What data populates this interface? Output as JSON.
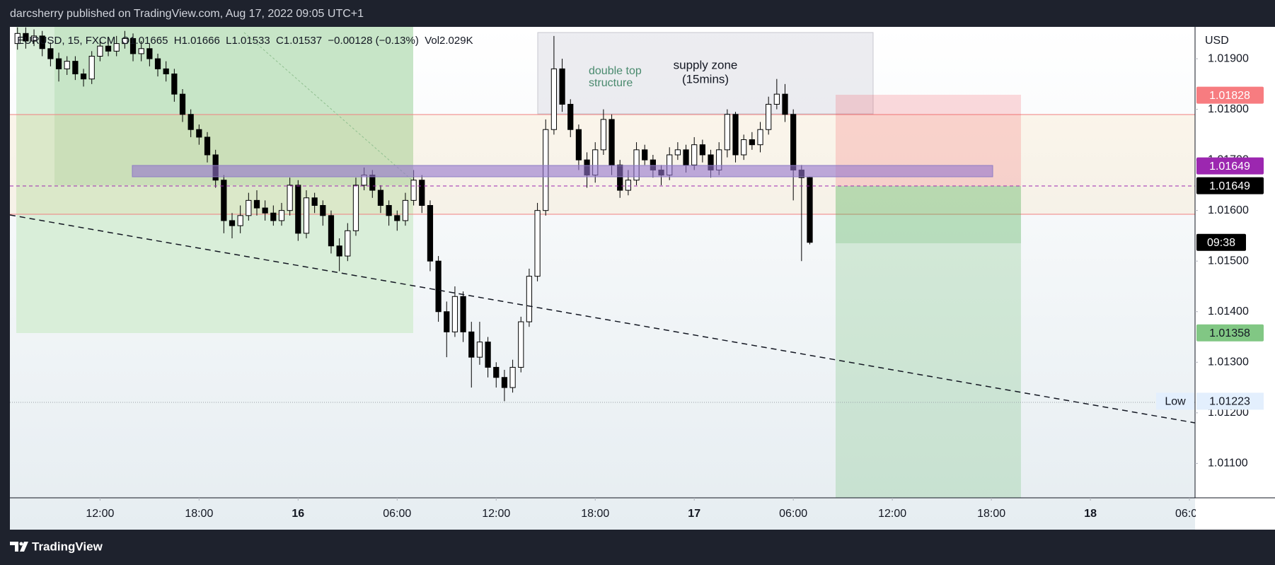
{
  "chart_data": {
    "type": "candlestick",
    "published": "darcsherry published on TradingView.com, Aug 17, 2022 09:05 UTC+1",
    "symbol_info": "EURUSD, 15, FXCM  O1.01665  H1.01666  L1.01533  C1.01537  −0.00128 (−0.13%)  Vol2.029K",
    "currency": "USD",
    "brand": "TradingView",
    "annotations": [
      {
        "lines": [
          "double top",
          "structure"
        ],
        "color": "#4a8a6e"
      },
      {
        "lines": [
          "supply zone",
          "(15mins)"
        ],
        "color": "#131722"
      }
    ],
    "countdown": "09:38",
    "markers": [
      {
        "value": 1.01828,
        "color": "#f77c80",
        "text_color": "#ffffff"
      },
      {
        "value": 1.01649,
        "color": "#9c27b0",
        "text_color": "#ffffff"
      },
      {
        "value": 1.01649,
        "color": "#000000",
        "text_color": "#ffffff"
      },
      {
        "value": 1.01358,
        "color": "#81c784",
        "text_color": "#131722"
      }
    ],
    "low_marker": {
      "name": "Low",
      "value": 1.01223
    },
    "up_color": "#ffffff",
    "down_color": "#000000",
    "xlim": [
      6.54,
      78.34
    ],
    "xticks": [
      {
        "value": 12,
        "label": "12:00"
      },
      {
        "value": 18,
        "label": "18:00"
      },
      {
        "value": 24,
        "label": "16"
      },
      {
        "value": 30,
        "label": "06:00"
      },
      {
        "value": 36,
        "label": "12:00"
      },
      {
        "value": 42,
        "label": "18:00"
      },
      {
        "value": 48,
        "label": "17"
      },
      {
        "value": 54,
        "label": "06:00"
      },
      {
        "value": 60,
        "label": "12:00"
      },
      {
        "value": 66,
        "label": "18:00"
      },
      {
        "value": 72,
        "label": "18"
      },
      {
        "value": 78,
        "label": "06:00"
      }
    ],
    "ylim": [
      1.01032,
      1.01963
    ],
    "yticks": [
      {
        "value": 1.011,
        "label": "1.01100"
      },
      {
        "value": 1.012,
        "label": "1.01200"
      },
      {
        "value": 1.013,
        "label": "1.01300"
      },
      {
        "value": 1.014,
        "label": "1.01400"
      },
      {
        "value": 1.015,
        "label": "1.01500"
      },
      {
        "value": 1.016,
        "label": "1.01600"
      },
      {
        "value": 1.017,
        "label": "1.01700"
      },
      {
        "value": 1.018,
        "label": "1.01800"
      },
      {
        "value": 1.019,
        "label": "1.01900"
      }
    ],
    "x": [
      7,
      7.5,
      8,
      8.5,
      9,
      9.5,
      10,
      10.5,
      11,
      11.5,
      12,
      12.5,
      13,
      13.5,
      14,
      14.5,
      15,
      15.5,
      16,
      16.5,
      17,
      17.5,
      18,
      18.5,
      19,
      19.5,
      20,
      20.5,
      21,
      21.5,
      22,
      22.5,
      23,
      23.5,
      24,
      24.5,
      25,
      25.5,
      26,
      26.5,
      27,
      27.5,
      28,
      28.5,
      29,
      29.5,
      30,
      30.5,
      31,
      31.5,
      32,
      32.5,
      33,
      33.5,
      34,
      34.5,
      35,
      35.5,
      36,
      36.5,
      37,
      37.5,
      38,
      38.5,
      39,
      39.5,
      40,
      40.5,
      41,
      41.5,
      42,
      42.5,
      43,
      43.5,
      44,
      44.5,
      45,
      45.5,
      46,
      46.5,
      47,
      47.5,
      48,
      48.5,
      49,
      49.5,
      50,
      50.5,
      51,
      51.5,
      52,
      52.5,
      53,
      53.5,
      54,
      54.5,
      55
    ],
    "open": [
      1.0193,
      1.0195,
      1.01935,
      1.01945,
      1.0192,
      1.019,
      1.0188,
      1.01895,
      1.0187,
      1.0186,
      1.01905,
      1.01925,
      1.01915,
      1.0193,
      1.0194,
      1.0191,
      1.0192,
      1.019,
      1.0188,
      1.0187,
      1.0183,
      1.0179,
      1.0176,
      1.01745,
      1.0171,
      1.0166,
      1.0158,
      1.0157,
      1.0159,
      1.0162,
      1.01605,
      1.01595,
      1.0158,
      1.016,
      1.0165,
      1.01555,
      1.01625,
      1.0161,
      1.0159,
      1.0153,
      1.0151,
      1.0156,
      1.0165,
      1.0167,
      1.0164,
      1.0161,
      1.0159,
      1.0158,
      1.0162,
      1.0166,
      1.0161,
      1.015,
      1.014,
      1.0136,
      1.0143,
      1.0136,
      1.0131,
      1.0134,
      1.0129,
      1.0127,
      1.0125,
      1.0129,
      1.0138,
      1.0147,
      1.016,
      1.0176,
      1.0188,
      1.0181,
      1.0176,
      1.017,
      1.0167,
      1.0172,
      1.0178,
      1.0169,
      1.0164,
      1.0166,
      1.0172,
      1.017,
      1.0168,
      1.0167,
      1.0171,
      1.0172,
      1.0169,
      1.0173,
      1.0171,
      1.0168,
      1.0172,
      1.0179,
      1.0171,
      1.0174,
      1.0173,
      1.0176,
      1.0181,
      1.0183,
      1.0179,
      1.0168,
      1.01665
    ],
    "high": [
      1.01962,
      1.01962,
      1.01958,
      1.01955,
      1.01932,
      1.01912,
      1.01905,
      1.01905,
      1.0188,
      1.01915,
      1.0194,
      1.0194,
      1.01945,
      1.01955,
      1.0195,
      1.01935,
      1.0193,
      1.0191,
      1.01895,
      1.0188,
      1.0184,
      1.018,
      1.0177,
      1.01755,
      1.0172,
      1.0167,
      1.01595,
      1.0161,
      1.01635,
      1.0164,
      1.0162,
      1.0161,
      1.01615,
      1.01665,
      1.0166,
      1.0164,
      1.01635,
      1.0162,
      1.016,
      1.01545,
      1.01575,
      1.01665,
      1.01685,
      1.0168,
      1.0165,
      1.0162,
      1.016,
      1.01635,
      1.0168,
      1.0167,
      1.0162,
      1.0151,
      1.0142,
      1.0145,
      1.0144,
      1.0138,
      1.0138,
      1.0135,
      1.013,
      1.01285,
      1.01305,
      1.0139,
      1.01485,
      1.01615,
      1.0178,
      1.01945,
      1.019,
      1.0182,
      1.0177,
      1.01715,
      1.01735,
      1.018,
      1.0179,
      1.017,
      1.0168,
      1.01735,
      1.0173,
      1.0171,
      1.0169,
      1.01725,
      1.01735,
      1.0173,
      1.01745,
      1.0174,
      1.0172,
      1.01735,
      1.018,
      1.01795,
      1.0175,
      1.01755,
      1.01775,
      1.01825,
      1.0186,
      1.0185,
      1.018,
      1.0169,
      1.01666
    ],
    "low": [
      1.01918,
      1.0192,
      1.01925,
      1.01905,
      1.01885,
      1.01855,
      1.01868,
      1.01858,
      1.01845,
      1.0185,
      1.01895,
      1.01905,
      1.01905,
      1.0192,
      1.01895,
      1.01895,
      1.01885,
      1.01865,
      1.01855,
      1.01815,
      1.01775,
      1.01745,
      1.0173,
      1.01695,
      1.01645,
      1.01555,
      1.01545,
      1.01555,
      1.0158,
      1.0159,
      1.0158,
      1.0157,
      1.0157,
      1.0159,
      1.0154,
      1.01545,
      1.01595,
      1.0157,
      1.01515,
      1.0148,
      1.015,
      1.0155,
      1.0164,
      1.01625,
      1.01595,
      1.0157,
      1.0156,
      1.0157,
      1.0161,
      1.01595,
      1.0148,
      1.0138,
      1.0131,
      1.0135,
      1.0134,
      1.0125,
      1.01295,
      1.0127,
      1.0125,
      1.01223,
      1.0124,
      1.0128,
      1.0137,
      1.0146,
      1.0159,
      1.0175,
      1.01795,
      1.01745,
      1.0168,
      1.01645,
      1.01655,
      1.0171,
      1.0167,
      1.01625,
      1.0163,
      1.0165,
      1.0169,
      1.01665,
      1.0165,
      1.0166,
      1.017,
      1.01675,
      1.0168,
      1.01695,
      1.01665,
      1.0167,
      1.01705,
      1.01695,
      1.017,
      1.0172,
      1.01715,
      1.0175,
      1.018,
      1.01775,
      1.0162,
      1.015,
      1.01533
    ],
    "close": [
      1.0195,
      1.01935,
      1.01945,
      1.0192,
      1.019,
      1.0188,
      1.01895,
      1.0187,
      1.0186,
      1.01905,
      1.01925,
      1.01915,
      1.0193,
      1.0194,
      1.0191,
      1.0192,
      1.019,
      1.0188,
      1.0187,
      1.0183,
      1.0179,
      1.0176,
      1.01745,
      1.0171,
      1.0166,
      1.0158,
      1.0157,
      1.0159,
      1.0162,
      1.01605,
      1.01595,
      1.0158,
      1.016,
      1.0165,
      1.01555,
      1.01625,
      1.0161,
      1.0159,
      1.0153,
      1.0151,
      1.0156,
      1.0165,
      1.0167,
      1.0164,
      1.0161,
      1.0159,
      1.0158,
      1.0162,
      1.0166,
      1.0161,
      1.015,
      1.014,
      1.0136,
      1.0143,
      1.0136,
      1.0131,
      1.0134,
      1.0129,
      1.0127,
      1.0125,
      1.0129,
      1.0138,
      1.0147,
      1.016,
      1.0176,
      1.0188,
      1.0181,
      1.0176,
      1.017,
      1.0167,
      1.0172,
      1.0178,
      1.0169,
      1.0164,
      1.0166,
      1.0172,
      1.017,
      1.0168,
      1.0167,
      1.0171,
      1.0172,
      1.0169,
      1.0173,
      1.0171,
      1.0168,
      1.0172,
      1.0179,
      1.0171,
      1.0174,
      1.0173,
      1.0176,
      1.0181,
      1.0183,
      1.0179,
      1.0168,
      1.01665,
      1.01537
    ]
  }
}
